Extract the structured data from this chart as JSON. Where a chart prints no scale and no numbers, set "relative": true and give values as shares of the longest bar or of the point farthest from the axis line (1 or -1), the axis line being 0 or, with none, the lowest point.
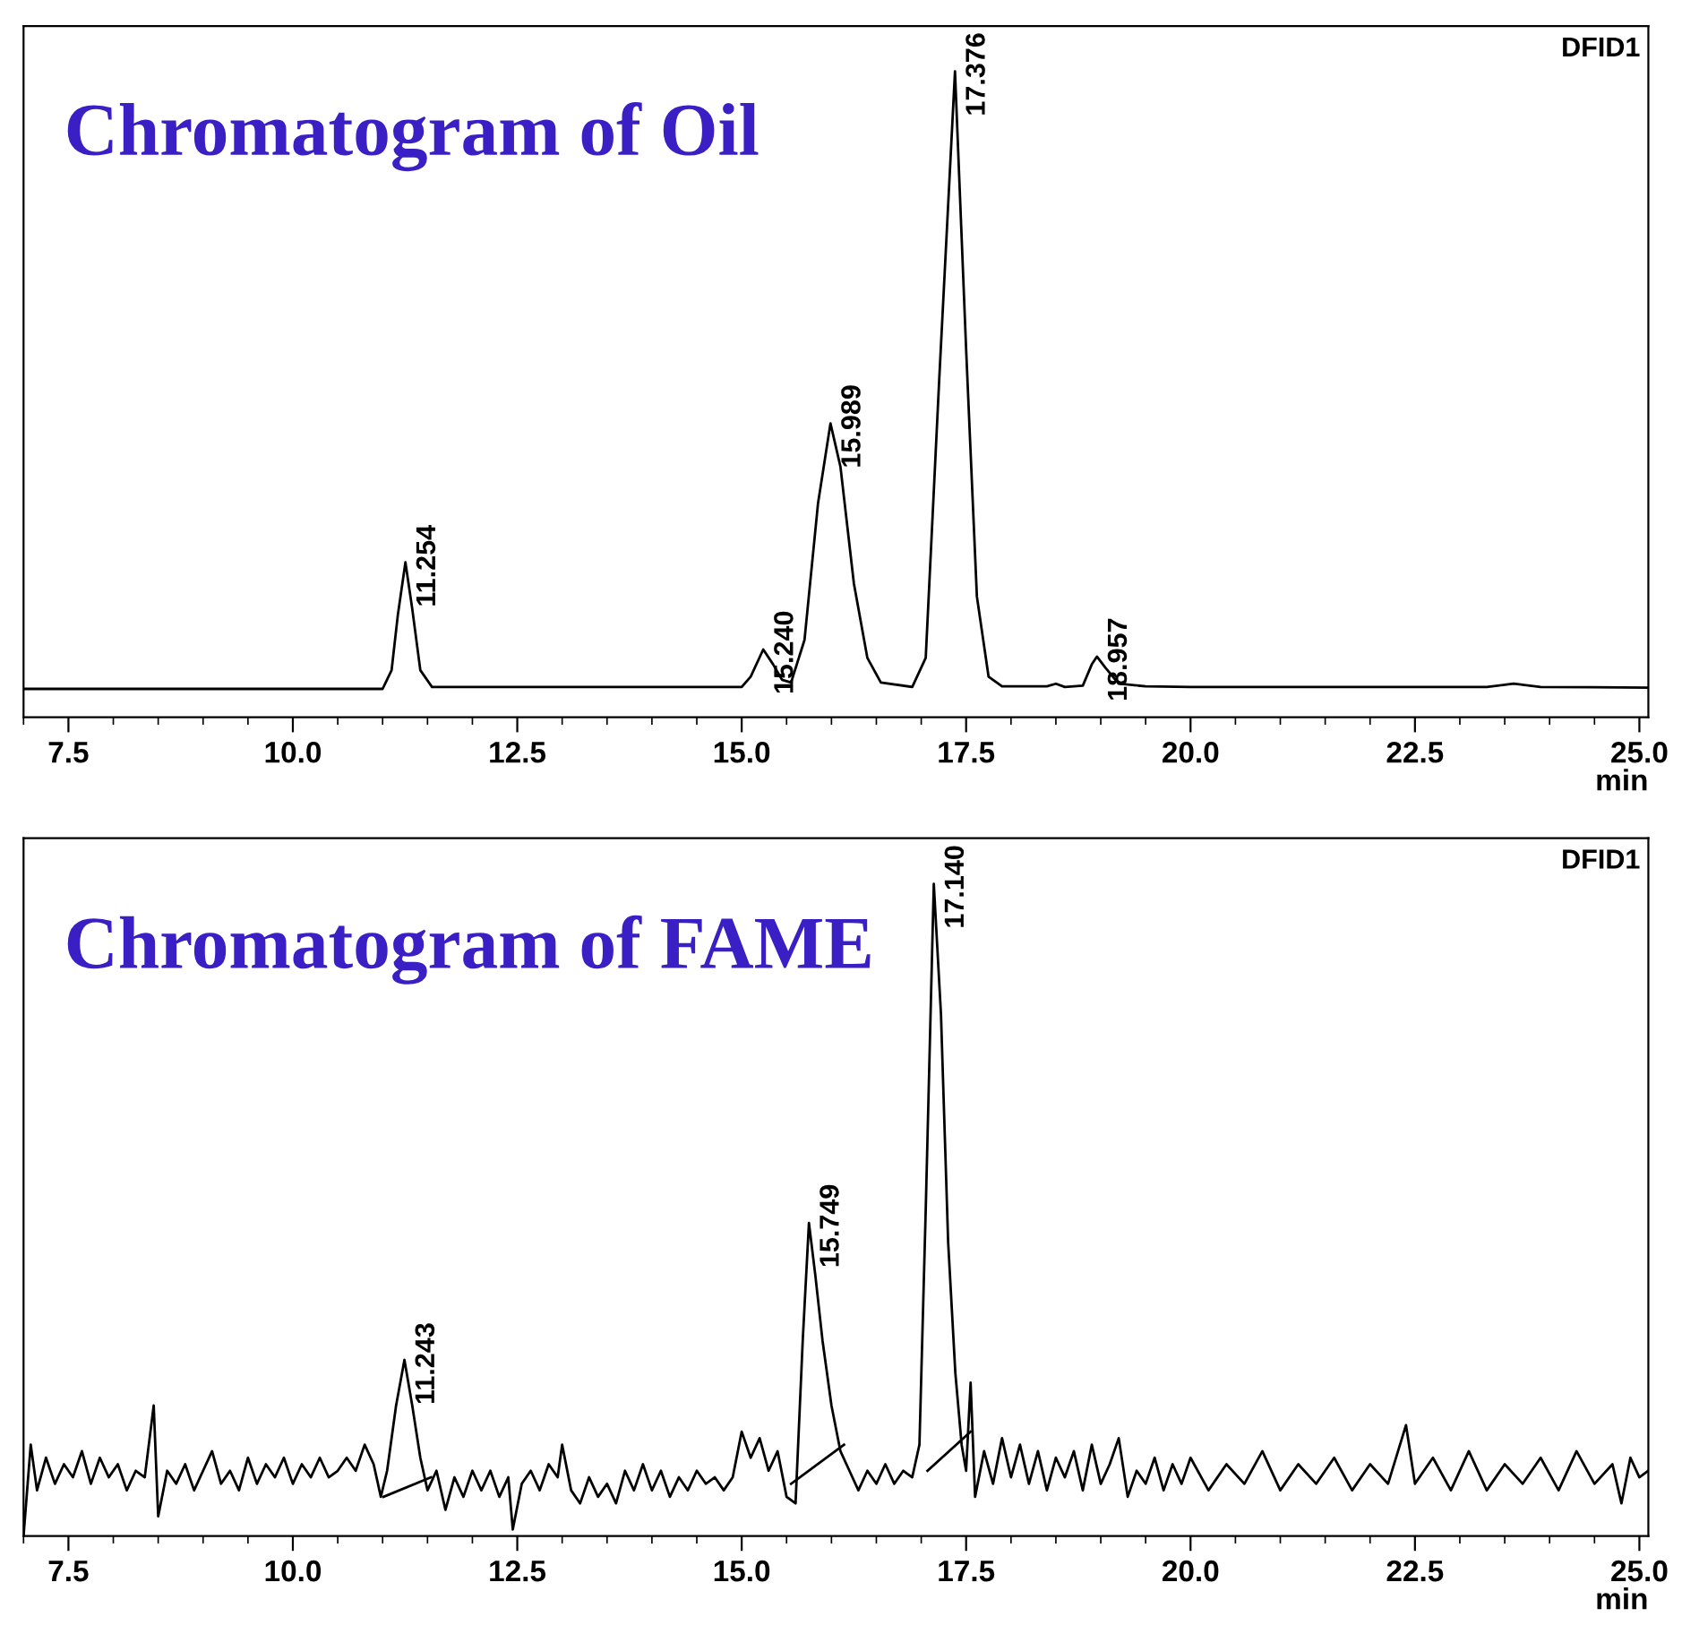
{
  "chart_data": [
    {
      "type": "line",
      "title": "Chromatogram of Oil",
      "xlabel": "min",
      "relative": true,
      "grid": false,
      "legend": false,
      "marker": "none",
      "line_style": "solid",
      "xlim": [
        7.0,
        25.1
      ],
      "xticks": [
        {
          "value": 7.5,
          "label": "7.5"
        },
        {
          "value": 10,
          "label": "10.0"
        },
        {
          "value": 12.5,
          "label": "12.5"
        },
        {
          "value": 15,
          "label": "15.0"
        },
        {
          "value": 17.5,
          "label": "17.5"
        },
        {
          "value": 20,
          "label": "20.0"
        },
        {
          "value": 22.5,
          "label": "22.5"
        },
        {
          "value": 25,
          "label": "25.0"
        }
      ],
      "annotations": [
        "DFID1",
        {
          "text": "11.254",
          "x": 11.254,
          "y": 0.24
        },
        {
          "text": "15.240",
          "x": 15.24,
          "y": 0.105
        },
        {
          "text": "15.989",
          "x": 15.989,
          "y": 0.455
        },
        {
          "text": "17.376",
          "x": 17.376,
          "y": 1.0
        },
        {
          "text": "18.957",
          "x": 18.957,
          "y": 0.094
        }
      ],
      "series": [
        {
          "color": "#000000",
          "x": [
            7.0,
            11.0,
            11.1,
            11.17,
            11.254,
            11.33,
            11.42,
            11.55,
            15.0,
            15.1,
            15.24,
            15.35,
            15.45,
            15.55,
            15.7,
            15.85,
            15.989,
            16.1,
            16.25,
            16.4,
            16.55,
            16.9,
            17.05,
            17.2,
            17.376,
            17.5,
            17.62,
            17.75,
            17.9,
            18.4,
            18.5,
            18.6,
            18.8,
            18.9,
            18.957,
            19.05,
            19.2,
            19.5,
            20.0,
            23.3,
            23.6,
            23.9,
            25.1
          ],
          "values": [
            0.044,
            0.044,
            0.073,
            0.159,
            0.24,
            0.168,
            0.073,
            0.047,
            0.047,
            0.063,
            0.105,
            0.082,
            0.058,
            0.054,
            0.12,
            0.331,
            0.455,
            0.388,
            0.207,
            0.092,
            0.054,
            0.047,
            0.092,
            0.522,
            1.0,
            0.57,
            0.187,
            0.063,
            0.048,
            0.048,
            0.052,
            0.047,
            0.049,
            0.082,
            0.094,
            0.077,
            0.052,
            0.048,
            0.047,
            0.047,
            0.052,
            0.047,
            0.046
          ]
        }
      ]
    },
    {
      "type": "line",
      "title": "Chromatogram of FAME",
      "xlabel": "min",
      "relative": true,
      "grid": false,
      "legend": false,
      "marker": "none",
      "line_style": "solid",
      "xlim": [
        7.0,
        25.1
      ],
      "xticks": [
        {
          "value": 7.5,
          "label": "7.5"
        },
        {
          "value": 10,
          "label": "10.0"
        },
        {
          "value": 12.5,
          "label": "12.5"
        },
        {
          "value": 15,
          "label": "15.0"
        },
        {
          "value": 17.5,
          "label": "17.5"
        },
        {
          "value": 20,
          "label": "20.0"
        },
        {
          "value": 22.5,
          "label": "22.5"
        },
        {
          "value": 25,
          "label": "25.0"
        }
      ],
      "annotations": [
        "DFID1",
        {
          "text": "11.243",
          "x": 11.243,
          "y": 0.27
        },
        {
          "text": "15.749",
          "x": 15.749,
          "y": 0.48
        },
        {
          "text": "17.140",
          "x": 17.14,
          "y": 1.0
        }
      ],
      "series": [
        {
          "color": "#000000",
          "x": [
            7.0,
            7.08,
            7.15,
            7.25,
            7.35,
            7.45,
            7.55,
            7.65,
            7.75,
            7.85,
            7.95,
            8.05,
            8.15,
            8.25,
            8.35,
            8.45,
            8.5,
            8.6,
            8.7,
            8.8,
            8.9,
            9.0,
            9.1,
            9.2,
            9.3,
            9.4,
            9.5,
            9.6,
            9.7,
            9.8,
            9.9,
            10.0,
            10.1,
            10.2,
            10.3,
            10.4,
            10.5,
            10.6,
            10.7,
            10.8,
            10.9,
            10.98,
            11.05,
            11.15,
            11.243,
            11.33,
            11.42,
            11.5,
            11.6,
            11.7,
            11.8,
            11.9,
            12.0,
            12.1,
            12.2,
            12.3,
            12.4,
            12.45,
            12.55,
            12.65,
            12.75,
            12.85,
            12.95,
            13.0,
            13.1,
            13.2,
            13.3,
            13.4,
            13.5,
            13.6,
            13.7,
            13.8,
            13.9,
            14.0,
            14.1,
            14.2,
            14.3,
            14.4,
            14.5,
            14.6,
            14.7,
            14.8,
            14.9,
            15.0,
            15.1,
            15.2,
            15.3,
            15.4,
            15.5,
            15.6,
            15.68,
            15.749,
            15.82,
            15.9,
            16.0,
            16.1,
            16.2,
            16.3,
            16.4,
            16.5,
            16.6,
            16.7,
            16.8,
            16.9,
            16.98,
            17.05,
            17.14,
            17.22,
            17.3,
            17.38,
            17.45,
            17.5,
            17.55,
            17.6,
            17.7,
            17.8,
            17.9,
            18.0,
            18.1,
            18.2,
            18.3,
            18.4,
            18.5,
            18.6,
            18.7,
            18.8,
            18.9,
            19.0,
            19.1,
            19.2,
            19.3,
            19.4,
            19.5,
            19.6,
            19.7,
            19.8,
            19.9,
            20.0,
            20.2,
            20.4,
            20.6,
            20.8,
            21.0,
            21.2,
            21.4,
            21.6,
            21.8,
            22.0,
            22.2,
            22.4,
            22.5,
            22.7,
            22.9,
            23.1,
            23.3,
            23.5,
            23.7,
            23.9,
            24.1,
            24.3,
            24.5,
            24.7,
            24.8,
            24.9,
            25.0,
            25.1
          ],
          "values": [
            0.0,
            0.14,
            0.07,
            0.12,
            0.08,
            0.11,
            0.09,
            0.13,
            0.08,
            0.12,
            0.09,
            0.11,
            0.07,
            0.1,
            0.09,
            0.2,
            0.03,
            0.1,
            0.08,
            0.11,
            0.07,
            0.1,
            0.13,
            0.08,
            0.1,
            0.07,
            0.12,
            0.08,
            0.11,
            0.09,
            0.12,
            0.08,
            0.11,
            0.09,
            0.12,
            0.09,
            0.1,
            0.12,
            0.1,
            0.14,
            0.11,
            0.06,
            0.1,
            0.2,
            0.27,
            0.2,
            0.12,
            0.07,
            0.1,
            0.04,
            0.09,
            0.06,
            0.1,
            0.07,
            0.1,
            0.06,
            0.09,
            0.01,
            0.08,
            0.1,
            0.07,
            0.11,
            0.09,
            0.14,
            0.07,
            0.05,
            0.09,
            0.06,
            0.08,
            0.05,
            0.1,
            0.07,
            0.11,
            0.07,
            0.1,
            0.06,
            0.09,
            0.07,
            0.1,
            0.08,
            0.09,
            0.07,
            0.09,
            0.16,
            0.12,
            0.15,
            0.1,
            0.13,
            0.06,
            0.05,
            0.3,
            0.48,
            0.4,
            0.3,
            0.2,
            0.13,
            0.1,
            0.07,
            0.1,
            0.08,
            0.11,
            0.08,
            0.1,
            0.09,
            0.14,
            0.5,
            1.0,
            0.8,
            0.45,
            0.25,
            0.14,
            0.1,
            0.235,
            0.06,
            0.13,
            0.08,
            0.15,
            0.09,
            0.14,
            0.08,
            0.13,
            0.07,
            0.12,
            0.09,
            0.13,
            0.07,
            0.14,
            0.08,
            0.11,
            0.15,
            0.06,
            0.1,
            0.08,
            0.12,
            0.07,
            0.11,
            0.08,
            0.12,
            0.07,
            0.11,
            0.08,
            0.13,
            0.07,
            0.11,
            0.08,
            0.12,
            0.07,
            0.11,
            0.08,
            0.17,
            0.08,
            0.12,
            0.07,
            0.13,
            0.07,
            0.11,
            0.08,
            0.12,
            0.07,
            0.13,
            0.08,
            0.11,
            0.05,
            0.12,
            0.09,
            0.1
          ]
        },
        {
          "color": "#000000",
          "x": [
            11.01,
            11.54
          ],
          "values": [
            0.06,
            0.09
          ]
        },
        {
          "color": "#000000",
          "x": [
            15.55,
            16.14
          ],
          "values": [
            0.08,
            0.14
          ]
        },
        {
          "color": "#000000",
          "x": [
            17.07,
            17.55
          ],
          "values": [
            0.1,
            0.16
          ]
        }
      ]
    }
  ]
}
